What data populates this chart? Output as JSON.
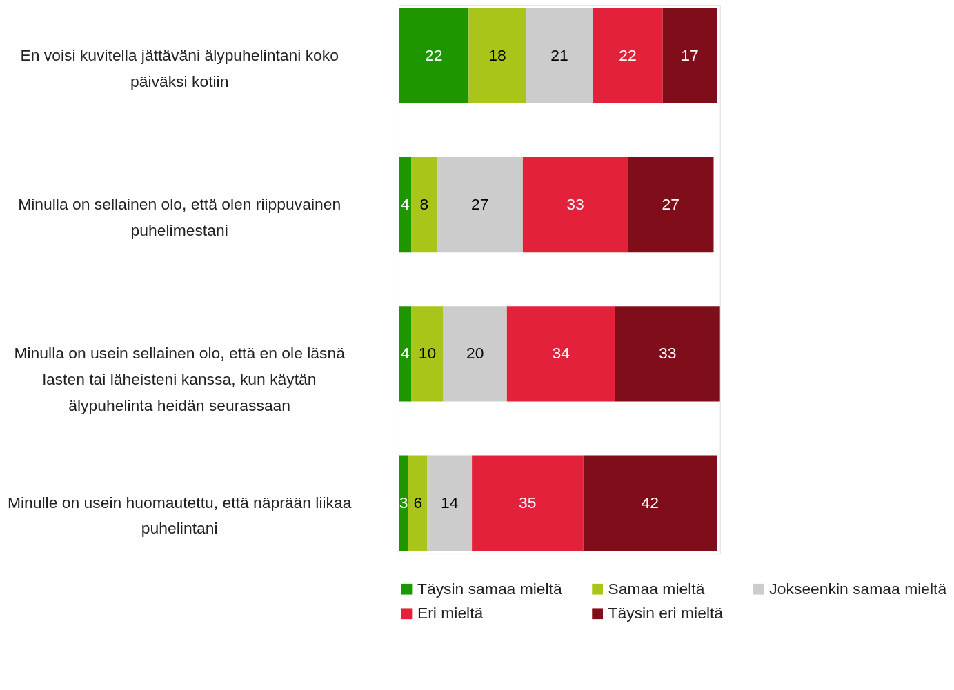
{
  "chart_data": {
    "type": "bar",
    "orientation": "horizontal",
    "stacked": true,
    "data_labels": true,
    "legend": "bottom",
    "grid": false,
    "tick_labels": "y",
    "categories": [
      "En voisi kuvitella jättäväni älypuhelintani koko päiväksi kotiin",
      "Minulla on sellainen olo, että olen riippuvainen puhelimestani",
      "Minulla on usein sellainen olo, että en ole läsnä lasten tai läheisteni kanssa, kun käytän älypuhelinta heidän seurassaan",
      "Minulle on usein huomautettu, että näprään liikaa puhelintani"
    ],
    "series": [
      {
        "name": "Täysin samaa mieltä",
        "color": "#1e9600",
        "values": [
          22,
          4,
          4,
          3
        ]
      },
      {
        "name": "Samaa mieltä",
        "color": "#aac51a",
        "values": [
          18,
          8,
          10,
          6
        ]
      },
      {
        "name": "Jokseenkin samaa mieltä",
        "color": "#cccccc",
        "values": [
          21,
          27,
          20,
          14
        ]
      },
      {
        "name": "Eri mieltä",
        "color": "#e3213b",
        "values": [
          22,
          33,
          34,
          35
        ]
      },
      {
        "name": "Täysin eri mieltä",
        "color": "#7f0e1a",
        "values": [
          17,
          27,
          33,
          42
        ]
      }
    ]
  }
}
